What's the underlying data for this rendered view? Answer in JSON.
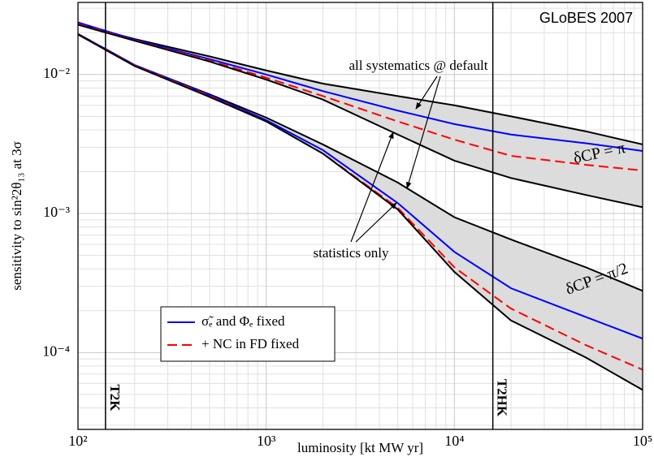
{
  "chart_data": {
    "type": "line",
    "log_x": true,
    "log_y": true,
    "grid": true,
    "x_label": "luminosity [kt MW yr]",
    "y_label": "sensitivity to sin²2θ₁₃ at 3σ",
    "xlim": [
      100,
      100000
    ],
    "ylim": [
      2.8e-05,
      0.033
    ],
    "xticks": [
      {
        "value": 100,
        "label": "10²"
      },
      {
        "value": 1000,
        "label": "10³"
      },
      {
        "value": 10000,
        "label": "10⁴"
      },
      {
        "value": 100000,
        "label": "10⁵"
      }
    ],
    "yticks": [
      {
        "value": 0.0001,
        "label": "10⁻⁴"
      },
      {
        "value": 0.001,
        "label": "10⁻³"
      },
      {
        "value": 0.01,
        "label": "10⁻²"
      }
    ],
    "x": [
      100,
      200,
      500,
      1000,
      2000,
      5000,
      10000,
      20000,
      50000,
      100000
    ],
    "series": [
      {
        "color": "#000000",
        "dash": false,
        "values": [
          0.0231,
          0.018,
          0.0135,
          0.0107,
          0.0086,
          0.007,
          0.006,
          0.005,
          0.0039,
          0.00314
        ]
      },
      {
        "name": "σ̃ₑ and Φₑ fixed",
        "color": "#0000ff",
        "dash": false,
        "values": [
          0.0237,
          0.0178,
          0.0129,
          0.01,
          0.0076,
          0.0055,
          0.0044,
          0.0037,
          0.0032,
          0.00282
        ]
      },
      {
        "name": "+ NC in FD fixed",
        "color": "#ff0000",
        "dash": true,
        "values": [
          0.0231,
          0.0176,
          0.0126,
          0.0095,
          0.007,
          0.0046,
          0.0034,
          0.0026,
          0.00224,
          0.00204
        ]
      },
      {
        "color": "#000000",
        "dash": false,
        "values": [
          0.0228,
          0.0175,
          0.0124,
          0.0092,
          0.0066,
          0.0037,
          0.0024,
          0.0018,
          0.00136,
          0.00111
        ]
      },
      {
        "color": "#000000",
        "dash": false,
        "values": [
          0.0196,
          0.0117,
          0.0072,
          0.0049,
          0.00314,
          0.00167,
          0.00094,
          0.00065,
          0.00041,
          0.000278
        ]
      },
      {
        "color": "#0000ff",
        "dash": false,
        "values": [
          0.0196,
          0.0117,
          0.0071,
          0.0047,
          0.00286,
          0.00119,
          0.00053,
          0.00029,
          0.00018,
          0.000126
        ]
      },
      {
        "color": "#ff0000",
        "dash": true,
        "values": [
          0.0195,
          0.0116,
          0.007,
          0.0046,
          0.0027,
          0.0011,
          0.00041,
          0.000207,
          0.000113,
          7.53e-05
        ]
      },
      {
        "color": "#000000",
        "dash": false,
        "values": [
          0.0194,
          0.0115,
          0.0069,
          0.0046,
          0.0027,
          0.00107,
          0.00038,
          0.00017,
          9.2e-05,
          5.38e-05
        ]
      }
    ],
    "shaded_bands": [
      [
        0,
        3
      ],
      [
        4,
        7
      ]
    ],
    "band_color": "#dcdcdc",
    "vlines": [
      {
        "x": 140,
        "label": "T2K"
      },
      {
        "x": 16000,
        "label": "T2HK"
      }
    ],
    "annotations": {
      "globes": "GLoBES 2007",
      "systematics": "all systematics @ default",
      "statistics": "statistics only",
      "delta_pi": "δCP = π",
      "delta_pi2": "δCP = π/2"
    },
    "legend_position": "lower left"
  }
}
